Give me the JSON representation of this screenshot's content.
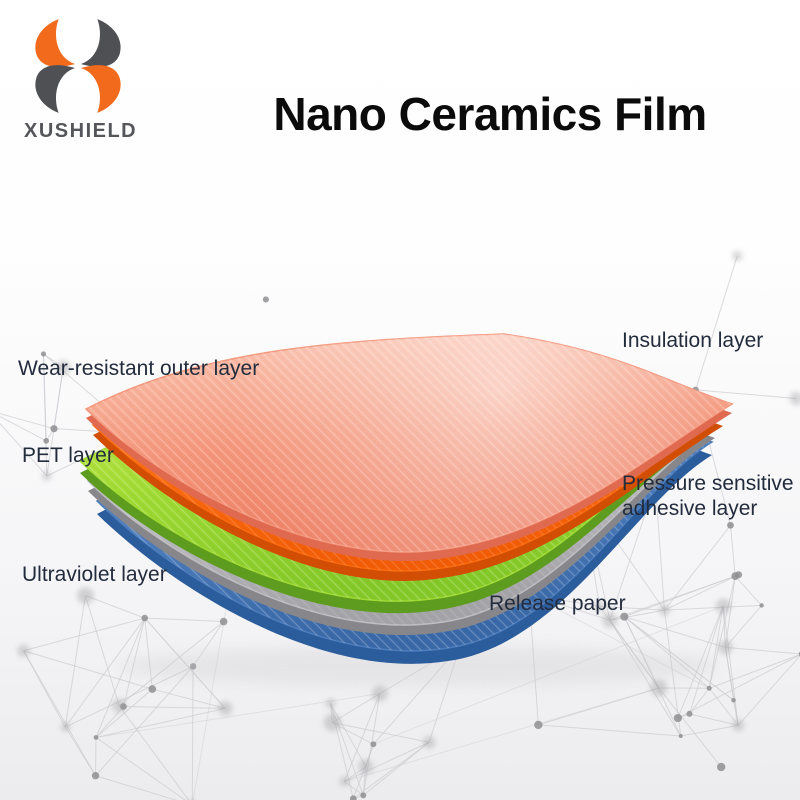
{
  "brand": {
    "name": "XUSHIELD",
    "logo_orange": "#F26A1B",
    "logo_gray": "#4F5054",
    "text_color": "#55565a"
  },
  "title": "Nano Ceramics Film",
  "diagram": {
    "label_color": "#232c3d",
    "labels": {
      "wear": "Wear-resistant outer layer",
      "pet": "PET layer",
      "uv": "Ultraviolet layer",
      "insulation": "Insulation layer",
      "adhesive": "Pressure sensitive adhesive layer",
      "release": "Release paper"
    },
    "sheets": [
      {
        "id": "release",
        "name": "release-paper-sheet",
        "light": "#7fa9dc",
        "mid": "#4e7ebd",
        "deep": "#3a69a8",
        "edge": "#2b5c9c",
        "hatch": 0.45
      },
      {
        "id": "adhesive",
        "name": "adhesive-sheet",
        "light": "#e6e6e8",
        "mid": "#bebec2",
        "deep": "#a4a4a8",
        "edge": "#87878b",
        "hatch": 0.25
      },
      {
        "id": "pet",
        "name": "pet-sheet",
        "light": "#d6ee57",
        "mid": "#a0db33",
        "deep": "#84c928",
        "edge": "#5d9c1e",
        "hatch": 0.45
      },
      {
        "id": "insulation",
        "name": "insulation-sheet",
        "light": "#ffa53f",
        "mid": "#fb6c10",
        "deep": "#f25c06",
        "edge": "#d14e04",
        "hatch": 0.3
      },
      {
        "id": "top_film",
        "name": "wear-resistant-sheet",
        "light": "#fcc9b6",
        "mid": "#f5977c",
        "deep": "#ee7f63",
        "edge": "#e06a50",
        "hatch": 0.5
      }
    ]
  },
  "background": {
    "line_color": "#c9c9cf",
    "dot_color": "#8f8f93",
    "soft_dot_color": "#97979b"
  }
}
